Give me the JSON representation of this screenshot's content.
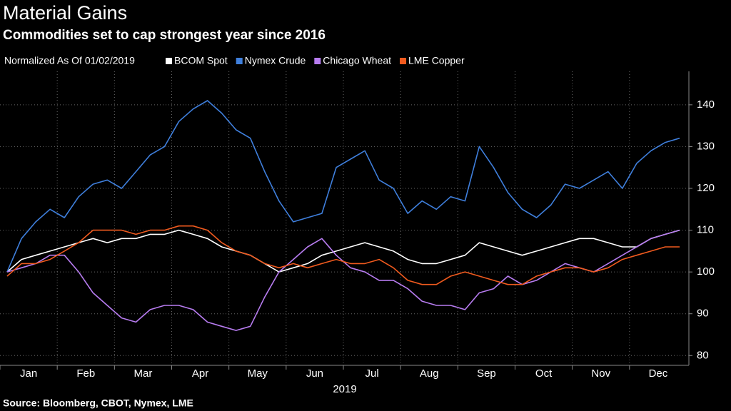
{
  "chart_data": {
    "type": "line",
    "title": "Material Gains",
    "subtitle": "Commodities set to cap strongest year since 2016",
    "legend_title": "Normalized As Of 01/02/2019",
    "x_label": "2019",
    "source": "Source: Bloomberg, CBOT, Nymex, LME",
    "categories": [
      null,
      "Jan",
      null,
      null,
      null,
      "Feb",
      null,
      null,
      null,
      "Mar",
      null,
      null,
      null,
      "Apr",
      null,
      null,
      null,
      "May",
      null,
      null,
      null,
      "Jun",
      null,
      null,
      null,
      "Jul",
      null,
      null,
      null,
      "Aug",
      null,
      null,
      null,
      "Sep",
      null,
      null,
      null,
      "Oct",
      null,
      null,
      null,
      "Nov",
      null,
      null,
      null,
      "Dec",
      null,
      null
    ],
    "series": [
      {
        "name": "BCOM Spot",
        "color": "#ffffff",
        "values": [
          100,
          103,
          104,
          105,
          106,
          107,
          108,
          107,
          108,
          108,
          109,
          109,
          110,
          109,
          108,
          106,
          105,
          104,
          102,
          100,
          101,
          102,
          104,
          105,
          106,
          107,
          106,
          105,
          103,
          102,
          102,
          103,
          104,
          107,
          106,
          105,
          104,
          105,
          106,
          107,
          108,
          108,
          107,
          106,
          106,
          108,
          109,
          110
        ]
      },
      {
        "name": "Nymex Crude",
        "color": "#3f7fdc",
        "values": [
          100,
          108,
          112,
          115,
          113,
          118,
          121,
          122,
          120,
          124,
          128,
          130,
          136,
          139,
          141,
          138,
          134,
          132,
          124,
          117,
          112,
          113,
          114,
          125,
          127,
          129,
          122,
          120,
          114,
          117,
          115,
          118,
          117,
          130,
          125,
          119,
          115,
          113,
          116,
          121,
          120,
          122,
          124,
          120,
          126,
          129,
          131,
          132
        ]
      },
      {
        "name": "Chicago Wheat",
        "color": "#b77cf0",
        "values": [
          100,
          101,
          102,
          104,
          104,
          100,
          95,
          92,
          89,
          88,
          91,
          92,
          92,
          91,
          88,
          87,
          86,
          87,
          94,
          100,
          103,
          106,
          108,
          104,
          101,
          100,
          98,
          98,
          96,
          93,
          92,
          92,
          91,
          95,
          96,
          99,
          97,
          98,
          100,
          102,
          101,
          100,
          102,
          104,
          106,
          108,
          109,
          110
        ]
      },
      {
        "name": "LME Copper",
        "color": "#f05a1e",
        "values": [
          99,
          102,
          102,
          103,
          105,
          107,
          110,
          110,
          110,
          109,
          110,
          110,
          111,
          111,
          110,
          107,
          105,
          104,
          102,
          101,
          102,
          101,
          102,
          103,
          102,
          102,
          103,
          101,
          98,
          97,
          97,
          99,
          100,
          99,
          98,
          97,
          97,
          99,
          100,
          101,
          101,
          100,
          101,
          103,
          104,
          105,
          106,
          106
        ]
      }
    ],
    "ylim": [
      78,
      148
    ],
    "yticks": [
      80,
      90,
      100,
      110,
      120,
      130,
      140
    ],
    "grid": true
  }
}
